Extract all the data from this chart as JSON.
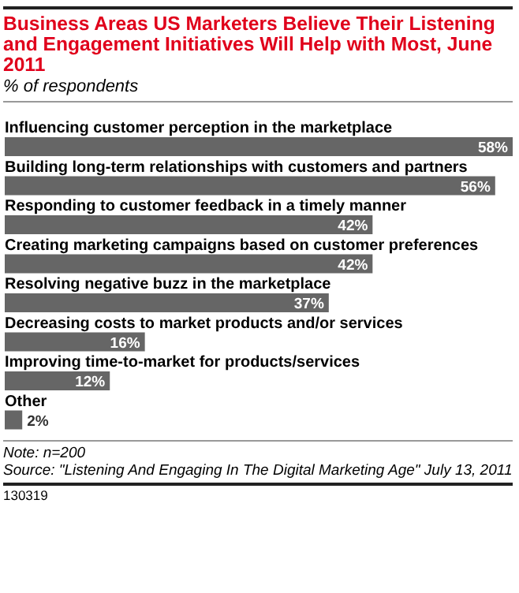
{
  "chart_data": {
    "type": "bar",
    "orientation": "horizontal",
    "title": "Business Areas US Marketers Believe Their Listening and Engagement Initiatives Will Help with Most, June 2011",
    "subtitle": "% of respondents",
    "categories": [
      "Influencing customer perception in the marketplace",
      "Building long-term relationships with customers and partners",
      "Responding to customer feedback in a timely manner",
      "Creating marketing campaigns based on customer preferences",
      "Resolving negative buzz in the marketplace",
      "Decreasing costs to market products and/or services",
      "Improving time-to-market for products/services",
      "Other"
    ],
    "values": [
      58,
      56,
      42,
      42,
      37,
      16,
      12,
      2
    ],
    "value_labels": [
      "58%",
      "56%",
      "42%",
      "42%",
      "37%",
      "16%",
      "12%",
      "2%"
    ],
    "color": "#666666",
    "annotations": [
      "Note: n=200",
      "Source: \"Listening And Engaging In The Digital Marketing Age\" July 13, 2011",
      "130319"
    ]
  }
}
